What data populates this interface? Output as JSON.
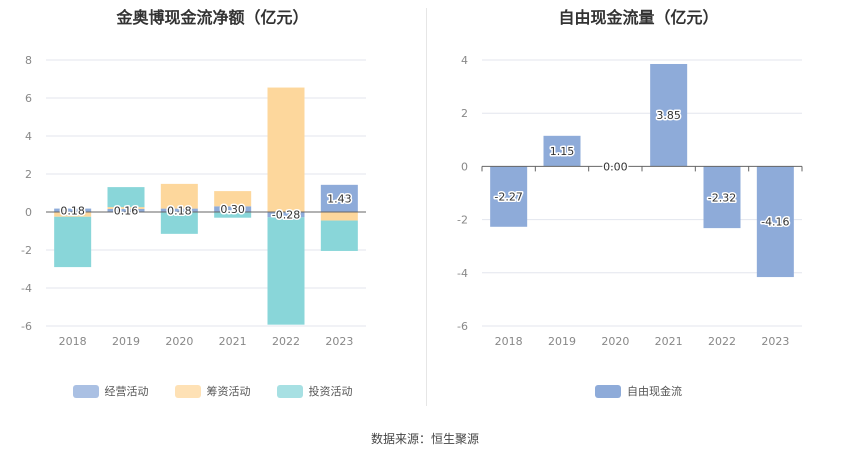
{
  "source_text": "数据来源：恒生聚源",
  "chart_data": [
    {
      "type": "bar",
      "title": "金奥博现金流净额（亿元）",
      "categories": [
        "2018",
        "2019",
        "2020",
        "2021",
        "2022",
        "2023"
      ],
      "ylim": [
        -6,
        8
      ],
      "yticks": [
        "-6",
        "-4",
        "-2",
        "0",
        "2",
        "4",
        "6",
        "8"
      ],
      "stacked": true,
      "grid": true,
      "legend_position": "bottom",
      "series": [
        {
          "name": "经营活动",
          "color": "#8eabd9",
          "values": [
            0.18,
            0.16,
            0.18,
            0.3,
            -0.28,
            1.43
          ],
          "labels": [
            "0.18",
            "0.16",
            "0.18",
            "0.30",
            "-0.28",
            "1.43"
          ]
        },
        {
          "name": "筹资活动",
          "color": "#fdd79c",
          "values": [
            -0.25,
            0.1,
            1.3,
            0.8,
            6.55,
            -0.45
          ]
        },
        {
          "name": "投资活动",
          "color": "#89d6d9",
          "values": [
            -2.65,
            1.05,
            -1.15,
            -0.3,
            -5.65,
            -1.6
          ]
        }
      ]
    },
    {
      "type": "bar",
      "title": "自由现金流量（亿元）",
      "categories": [
        "2018",
        "2019",
        "2020",
        "2021",
        "2022",
        "2023"
      ],
      "ylim": [
        -6,
        4
      ],
      "yticks": [
        "-6",
        "-4",
        "-2",
        "0",
        "2",
        "4"
      ],
      "grid": true,
      "legend_position": "bottom",
      "series": [
        {
          "name": "自由现金流",
          "color": "#8eabd9",
          "values": [
            -2.27,
            1.15,
            0.0,
            3.85,
            -2.32,
            -4.16
          ],
          "labels": [
            "-2.27",
            "1.15",
            "0.00",
            "3.85",
            "-2.32",
            "-4.16"
          ]
        }
      ]
    }
  ]
}
